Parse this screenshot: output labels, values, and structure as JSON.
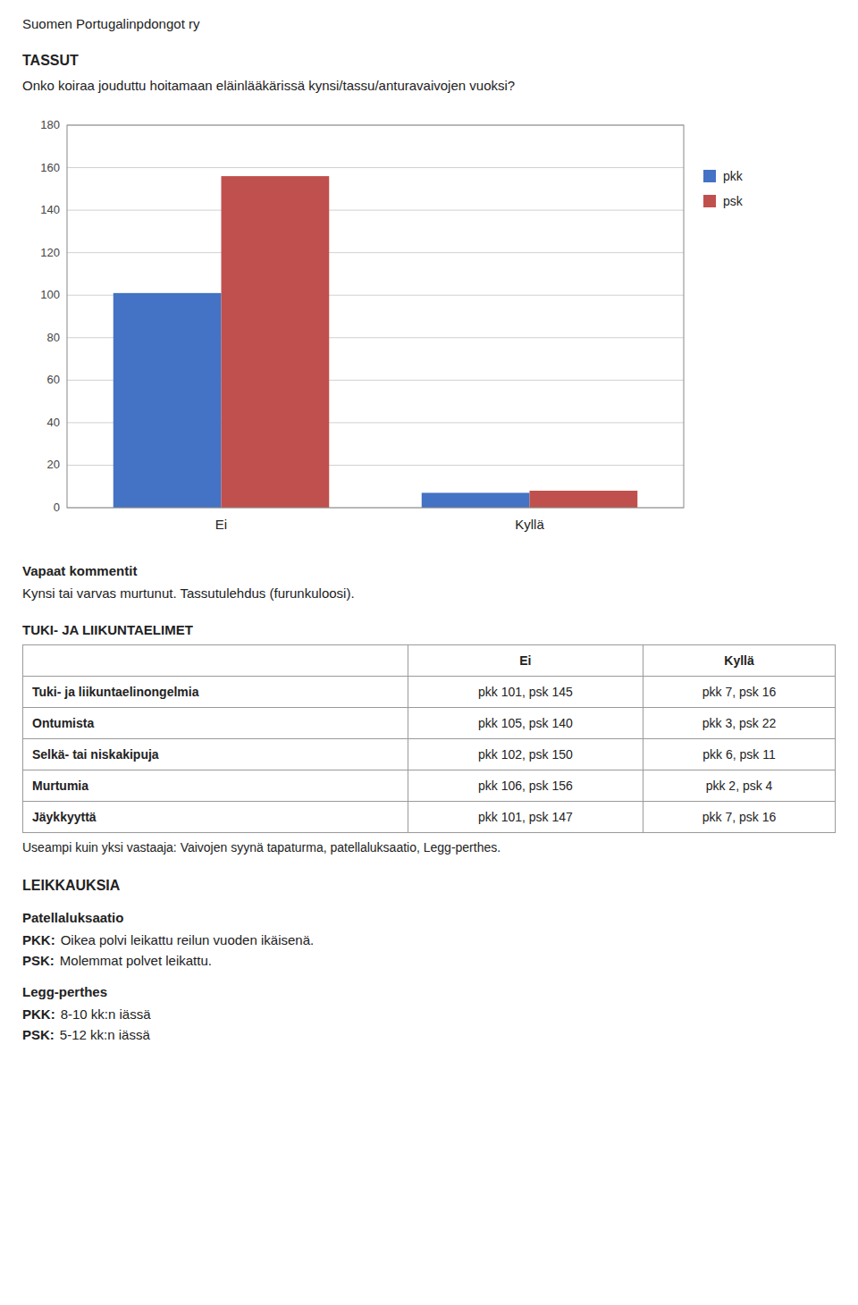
{
  "header": "Suomen Portugalinpdongot ry",
  "section_title": "TASSUT",
  "question": "Onko koiraa jouduttu hoitamaan eläinlääkärissä kynsi/tassu/anturavaivojen vuoksi?",
  "chart_data": {
    "type": "bar",
    "categories": [
      "Ei",
      "Kyllä"
    ],
    "series": [
      {
        "name": "pkk",
        "color": "#4472C4",
        "values": [
          101,
          7
        ]
      },
      {
        "name": "psk",
        "color": "#C0504D",
        "values": [
          156,
          8
        ]
      }
    ],
    "ylim": [
      0,
      180
    ],
    "yticks": [
      0,
      20,
      40,
      60,
      80,
      100,
      120,
      140,
      160,
      180
    ],
    "grid": true,
    "legend": "right"
  },
  "free_comments_title": "Vapaat kommentit",
  "free_comments_text": "Kynsi tai varvas murtunut. Tassutulehdus (furunkuloosi).",
  "section2_title": "TUKI- JA LIIKUNTAELIMET",
  "table": {
    "headers": [
      "Ei",
      "Kyllä"
    ],
    "rows": [
      [
        "Tuki- ja liikuntaelinongelmia",
        "pkk 101, psk 145",
        "pkk 7, psk 16"
      ],
      [
        "Ontumista",
        "pkk 105, psk 140",
        "pkk 3, psk 22"
      ],
      [
        "Selkä- tai niskakipuja",
        "pkk 102, psk 150",
        "pkk 6, psk 11"
      ],
      [
        "Murtumia",
        "pkk 106, psk 156",
        "pkk 2, psk 4"
      ],
      [
        "Jäykkyyttä",
        "pkk 101, psk 147",
        "pkk 7, psk 16"
      ]
    ]
  },
  "note_text": "Useampi kuin yksi vastaaja: Vaivojen syynä tapaturma, patellaluksaatio, Legg-perthes.",
  "surgeries": {
    "title": "LEIKKAUKSIA",
    "items": [
      {
        "title": "Patellaluksaatio",
        "lines": [
          {
            "label": "PKK:",
            "text": "Oikea polvi leikattu reilun vuoden ikäisenä."
          },
          {
            "label": "PSK:",
            "text": "Molemmat polvet leikattu."
          }
        ]
      },
      {
        "title": "Legg-perthes",
        "lines": [
          {
            "label": "PKK:",
            "text": "8-10 kk:n iässä"
          },
          {
            "label": "PSK:",
            "text": "5-12 kk:n iässä"
          }
        ]
      }
    ]
  }
}
